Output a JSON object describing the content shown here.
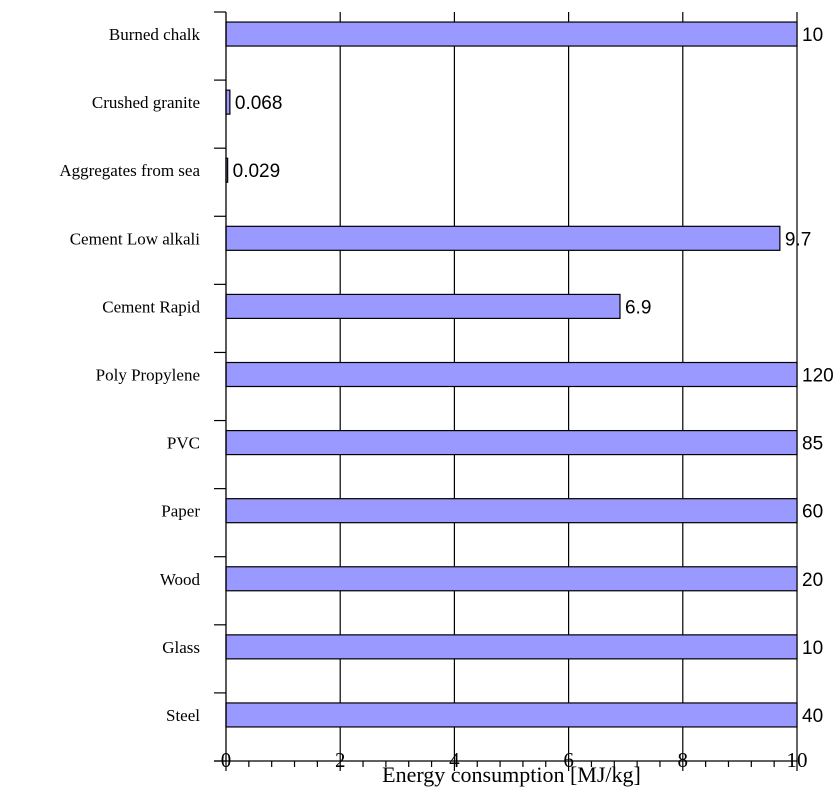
{
  "chart_data": {
    "type": "bar",
    "orientation": "horizontal",
    "categories": [
      "Burned chalk",
      "Crushed granite",
      "Aggregates from sea",
      "Cement Low alkali",
      "Cement Rapid",
      "Poly Propylene",
      "PVC",
      "Paper",
      "Wood",
      "Glass",
      "Steel"
    ],
    "values": [
      10,
      0.068,
      0.029,
      9.7,
      6.9,
      120,
      85,
      60,
      20,
      10,
      40
    ],
    "data_labels": [
      "10",
      "0.068",
      "0.029",
      "9.7",
      "6.9",
      "120",
      "85",
      "60",
      "20",
      "10",
      "40"
    ],
    "xlabel": "Energy consumption [MJ/kg]",
    "xlim": [
      0,
      10
    ],
    "xticks": [
      0,
      2,
      4,
      6,
      8,
      10
    ],
    "xtick_labels": [
      "0",
      "2",
      "4",
      "6",
      "8",
      "10"
    ],
    "minor_ticks_per_major": 4,
    "grid": "vertical-major",
    "legend": "none",
    "bar_color": "#9999ff",
    "bar_edge_color": "#000000",
    "gridline_color": "#000000"
  }
}
